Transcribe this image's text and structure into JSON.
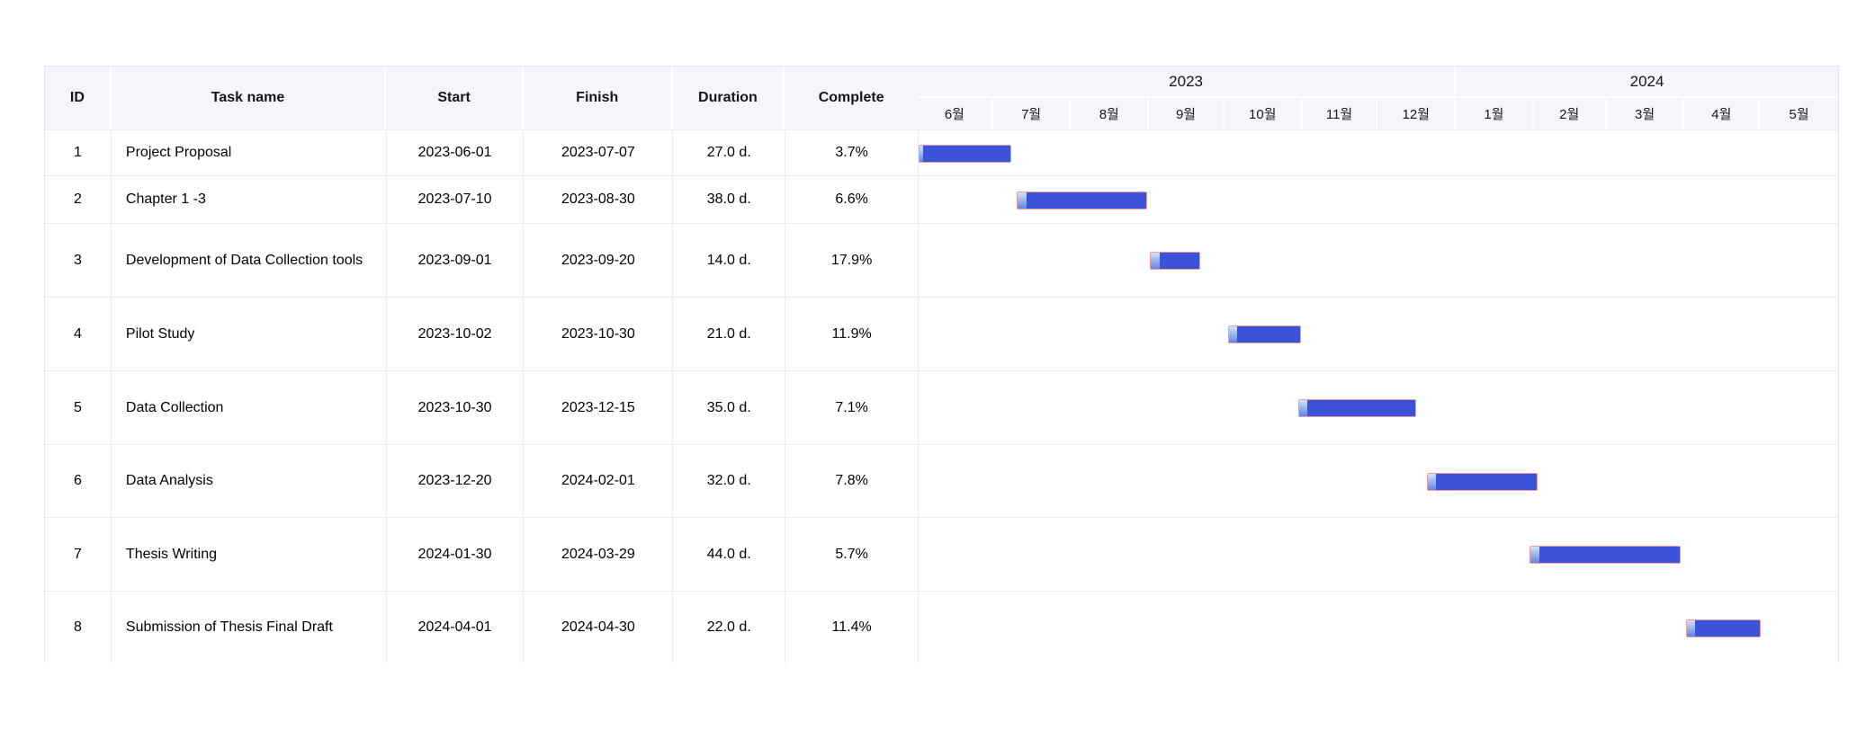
{
  "table": {
    "headers": [
      "ID",
      "Task name",
      "Start",
      "Finish",
      "Duration",
      "Complete"
    ]
  },
  "chart_data": {
    "type": "gantt",
    "timeline_start": "2023-06-01",
    "timeline_end": "2024-05-31",
    "grid": "horizontal-only",
    "legend": "none",
    "bar_color": "#3a53d9",
    "bar_border_color": "#ef9aa0",
    "progress_gradient": [
      "#d3e3f9",
      "#6186e0"
    ],
    "header_bg": "#f5f5fb",
    "years": [
      {
        "label": "2023",
        "months": [
          "6월",
          "7월",
          "8월",
          "9월",
          "10월",
          "11월",
          "12월"
        ]
      },
      {
        "label": "2024",
        "months": [
          "1월",
          "2월",
          "3월",
          "4월",
          "5월"
        ]
      }
    ],
    "tasks": [
      {
        "id": "1",
        "name": "Project Proposal",
        "start": "2023-06-01",
        "finish": "2023-07-07",
        "duration": "27.0 d.",
        "complete": "3.7%",
        "complete_pct": 3.7
      },
      {
        "id": "2",
        "name": "Chapter 1 -3",
        "start": "2023-07-10",
        "finish": "2023-08-30",
        "duration": "38.0 d.",
        "complete": "6.6%",
        "complete_pct": 6.6
      },
      {
        "id": "3",
        "name": "Development of Data Collection tools",
        "start": "2023-09-01",
        "finish": "2023-09-20",
        "duration": "14.0 d.",
        "complete": "17.9%",
        "complete_pct": 17.9
      },
      {
        "id": "4",
        "name": "Pilot Study",
        "start": "2023-10-02",
        "finish": "2023-10-30",
        "duration": "21.0 d.",
        "complete": "11.9%",
        "complete_pct": 11.9
      },
      {
        "id": "5",
        "name": "Data Collection",
        "start": "2023-10-30",
        "finish": "2023-12-15",
        "duration": "35.0 d.",
        "complete": "7.1%",
        "complete_pct": 7.1
      },
      {
        "id": "6",
        "name": "Data Analysis",
        "start": "2023-12-20",
        "finish": "2024-02-01",
        "duration": "32.0 d.",
        "complete": "7.8%",
        "complete_pct": 7.8
      },
      {
        "id": "7",
        "name": "Thesis Writing",
        "start": "2024-01-30",
        "finish": "2024-03-29",
        "duration": "44.0 d.",
        "complete": "5.7%",
        "complete_pct": 5.7
      },
      {
        "id": "8",
        "name": "Submission of Thesis Final Draft",
        "start": "2024-04-01",
        "finish": "2024-04-30",
        "duration": "22.0 d.",
        "complete": "11.4%",
        "complete_pct": 11.4
      }
    ]
  }
}
